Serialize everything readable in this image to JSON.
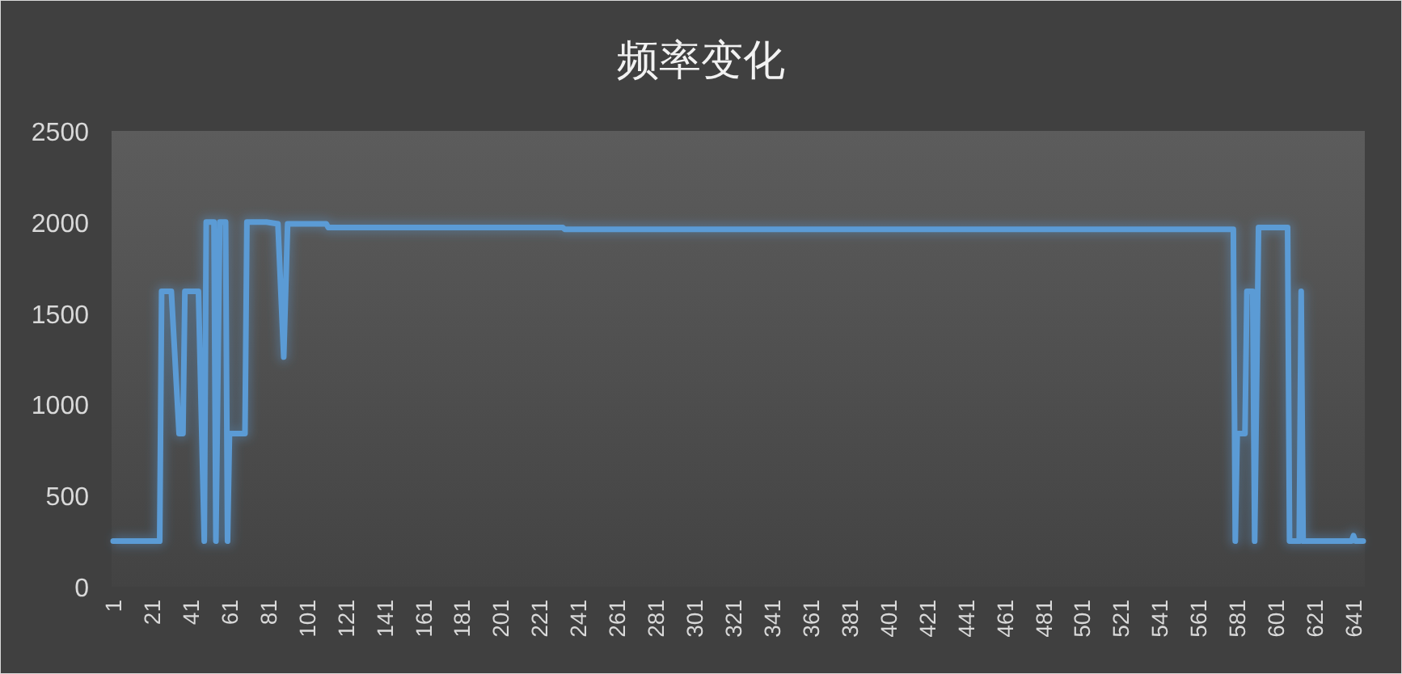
{
  "chart_data": {
    "type": "line",
    "title": "频率变化",
    "x": [
      1,
      25,
      26,
      31,
      35,
      37,
      38,
      45,
      48,
      49,
      53,
      54,
      56,
      59,
      60,
      61,
      69,
      70,
      80,
      86,
      89,
      91,
      111,
      112,
      233,
      234,
      579,
      580,
      581,
      585,
      586,
      589,
      590,
      592,
      607,
      608,
      613,
      614,
      615,
      640,
      641,
      642,
      646
    ],
    "series": [
      {
        "color": "#5b9bd5",
        "values": [
          250,
          250,
          1620,
          1620,
          840,
          840,
          1620,
          1620,
          250,
          2000,
          2000,
          250,
          2000,
          2000,
          250,
          840,
          840,
          2000,
          2000,
          1990,
          1260,
          1990,
          1990,
          1970,
          1970,
          1960,
          1960,
          250,
          840,
          840,
          1620,
          1620,
          250,
          1970,
          1970,
          250,
          250,
          1620,
          250,
          250,
          280,
          250,
          250
        ]
      }
    ],
    "xlim": [
      1,
      646
    ],
    "xticks": [
      1,
      21,
      41,
      61,
      81,
      101,
      121,
      141,
      161,
      181,
      201,
      221,
      241,
      261,
      281,
      301,
      321,
      341,
      361,
      381,
      401,
      421,
      441,
      461,
      481,
      501,
      521,
      541,
      561,
      581,
      601,
      621,
      641
    ],
    "ylim": [
      0,
      2500
    ],
    "yticks": [
      0,
      500,
      1000,
      1500,
      2000,
      2500
    ],
    "grid": false,
    "marker": "none",
    "line_style": "solid"
  }
}
